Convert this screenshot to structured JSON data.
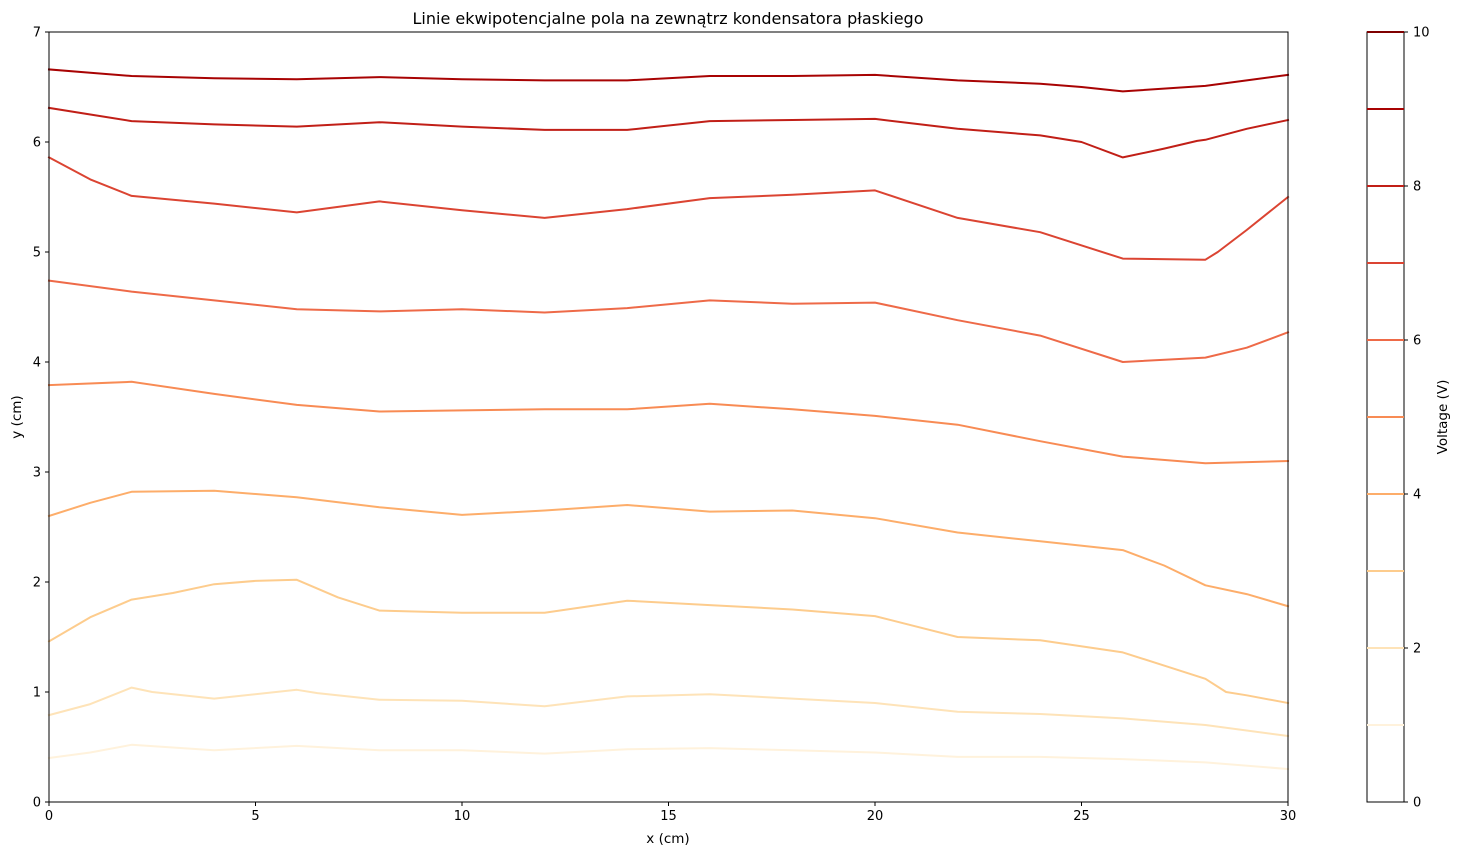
{
  "chart_data": {
    "type": "line",
    "title": "Linie ekwipotencjalne pola na zewnątrz kondensatora płaskiego",
    "xlabel": "x (cm)",
    "ylabel": "y (cm)",
    "xlim": [
      0,
      30
    ],
    "ylim": [
      0,
      7
    ],
    "xticks": [
      0,
      5,
      10,
      15,
      20,
      25,
      30
    ],
    "yticks": [
      0,
      1,
      2,
      3,
      4,
      5,
      6,
      7
    ],
    "grid": false,
    "colorbar": {
      "label": "Voltage (V)",
      "range": [
        0,
        10
      ],
      "ticks": [
        0,
        2,
        4,
        6,
        8,
        10
      ],
      "levels": [
        {
          "value": 1,
          "color": "#fff2dc"
        },
        {
          "value": 2,
          "color": "#fee3b8"
        },
        {
          "value": 3,
          "color": "#fdcc8d"
        },
        {
          "value": 4,
          "color": "#fdad6a"
        },
        {
          "value": 5,
          "color": "#f88b54"
        },
        {
          "value": 6,
          "color": "#ee6a48"
        },
        {
          "value": 7,
          "color": "#db4432"
        },
        {
          "value": 8,
          "color": "#c11f17"
        },
        {
          "value": 9,
          "color": "#a80303"
        },
        {
          "value": 10,
          "color": "#7f0000"
        }
      ]
    },
    "series": [
      {
        "name": "1 V",
        "color": "#fff2dc",
        "x": [
          0,
          1,
          2,
          4,
          6,
          8,
          10,
          12,
          14,
          16,
          18,
          20,
          22,
          24,
          26,
          28,
          30
        ],
        "y": [
          0.4,
          0.45,
          0.52,
          0.47,
          0.51,
          0.47,
          0.47,
          0.44,
          0.48,
          0.49,
          0.47,
          0.45,
          0.41,
          0.41,
          0.39,
          0.36,
          0.3
        ]
      },
      {
        "name": "2 V",
        "color": "#fee3b8",
        "x": [
          0,
          1,
          2,
          2.5,
          4,
          6,
          6.5,
          8,
          10,
          12,
          14,
          16,
          18,
          20,
          22,
          24,
          26,
          28,
          30
        ],
        "y": [
          0.79,
          0.89,
          1.04,
          1.0,
          0.94,
          1.02,
          0.99,
          0.93,
          0.92,
          0.87,
          0.96,
          0.98,
          0.94,
          0.9,
          0.82,
          0.8,
          0.76,
          0.7,
          0.6
        ]
      },
      {
        "name": "3 V",
        "color": "#fdcc8d",
        "x": [
          0,
          1,
          2,
          3,
          4,
          5,
          6,
          7,
          8,
          10,
          12,
          14,
          16,
          18,
          20,
          22,
          24,
          26,
          27,
          28,
          28.5,
          29,
          30
        ],
        "y": [
          1.46,
          1.68,
          1.84,
          1.9,
          1.98,
          2.01,
          2.02,
          1.86,
          1.74,
          1.72,
          1.72,
          1.83,
          1.79,
          1.75,
          1.69,
          1.5,
          1.47,
          1.36,
          1.24,
          1.12,
          1.0,
          0.97,
          0.9
        ]
      },
      {
        "name": "4 V",
        "color": "#fdad6a",
        "x": [
          0,
          1,
          2,
          4,
          6,
          8,
          10,
          12,
          14,
          16,
          18,
          20,
          22,
          24,
          26,
          27,
          28,
          29,
          30
        ],
        "y": [
          2.6,
          2.72,
          2.82,
          2.83,
          2.77,
          2.68,
          2.61,
          2.65,
          2.7,
          2.64,
          2.65,
          2.58,
          2.45,
          2.37,
          2.29,
          2.15,
          1.97,
          1.89,
          1.78
        ]
      },
      {
        "name": "5 V",
        "color": "#f88b54",
        "x": [
          0,
          2,
          4,
          6,
          8,
          10,
          12,
          14,
          16,
          18,
          20,
          22,
          24,
          26,
          28,
          30
        ],
        "y": [
          3.79,
          3.82,
          3.71,
          3.61,
          3.55,
          3.56,
          3.57,
          3.57,
          3.62,
          3.57,
          3.51,
          3.43,
          3.28,
          3.14,
          3.08,
          3.1
        ]
      },
      {
        "name": "6 V",
        "color": "#ee6a48",
        "x": [
          0,
          2,
          4,
          6,
          8,
          10,
          12,
          14,
          16,
          18,
          20,
          22,
          24,
          26,
          28,
          29,
          30
        ],
        "y": [
          4.74,
          4.64,
          4.56,
          4.48,
          4.46,
          4.48,
          4.45,
          4.49,
          4.56,
          4.53,
          4.54,
          4.38,
          4.24,
          4.0,
          4.04,
          4.13,
          4.27
        ]
      },
      {
        "name": "7 V",
        "color": "#db4432",
        "x": [
          0,
          1,
          2,
          4,
          6,
          8,
          10,
          12,
          14,
          16,
          18,
          20,
          22,
          24,
          26,
          28,
          28.3,
          29,
          30
        ],
        "y": [
          5.86,
          5.66,
          5.51,
          5.44,
          5.36,
          5.46,
          5.38,
          5.31,
          5.39,
          5.49,
          5.52,
          5.56,
          5.31,
          5.18,
          4.94,
          4.93,
          5.0,
          5.2,
          5.5
        ]
      },
      {
        "name": "8 V",
        "color": "#c11f17",
        "x": [
          0,
          1,
          2,
          4,
          6,
          8,
          10,
          12,
          14,
          16,
          18,
          20,
          22,
          24,
          25,
          26,
          27,
          27.8,
          28,
          29,
          30
        ],
        "y": [
          6.31,
          6.25,
          6.19,
          6.16,
          6.14,
          6.18,
          6.14,
          6.11,
          6.11,
          6.19,
          6.2,
          6.21,
          6.12,
          6.06,
          6.0,
          5.86,
          5.94,
          6.01,
          6.02,
          6.12,
          6.2
        ]
      },
      {
        "name": "9 V",
        "color": "#a80303",
        "x": [
          0,
          1,
          2,
          4,
          6,
          8,
          10,
          12,
          14,
          16,
          18,
          20,
          22,
          24,
          25,
          26,
          28,
          29,
          30
        ],
        "y": [
          6.66,
          6.63,
          6.6,
          6.58,
          6.57,
          6.59,
          6.57,
          6.56,
          6.56,
          6.6,
          6.6,
          6.61,
          6.56,
          6.53,
          6.5,
          6.46,
          6.51,
          6.56,
          6.61
        ]
      }
    ]
  }
}
